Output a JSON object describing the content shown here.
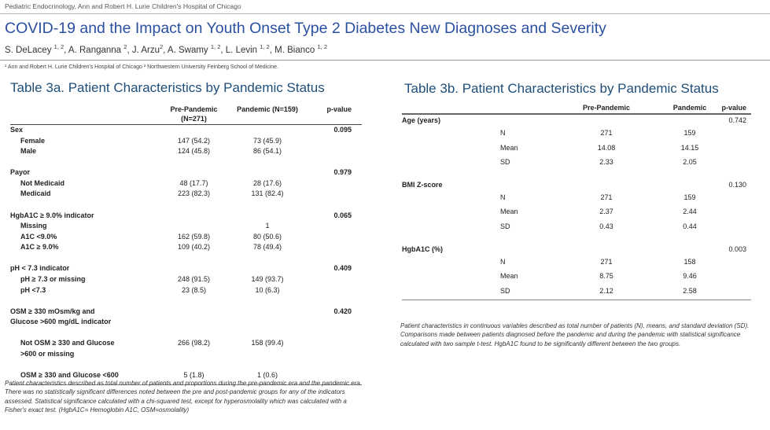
{
  "header": {
    "affiliation": "Pediatric Endocrinology, Ann and Robert H. Lurie Children's Hospital of Chicago",
    "title": "COVID-19 and the Impact on Youth Onset Type 2 Diabetes New Diagnoses and Severity",
    "authors": [
      "S. DeLacey ",
      "1, 2",
      ", A. Ranganna ",
      "2",
      ", J. Arzu",
      "2",
      ", A. Swamy ",
      "1, 2",
      ", L. Levin ",
      "1, 2",
      ", M. Bianco ",
      "1, 2"
    ],
    "footnote": "¹ Ann and Robert H. Lurie Children's Hospital of Chicago ² Northwestern University Feinberg School of Medicine."
  },
  "table_3a": {
    "title": "Table 3a. Patient Characteristics by Pandemic Status",
    "columns": [
      "Pre-Pandemic (N=271)",
      "Pandemic (N=159)",
      "p-value"
    ],
    "groups": [
      {
        "label": "Sex",
        "p_value": "0.095",
        "rows": [
          {
            "label": "Female",
            "pre": "147 (54.2)",
            "pandemic": "73 (45.9)"
          },
          {
            "label": "Male",
            "pre": "124 (45.8)",
            "pandemic": "86 (54.1)"
          }
        ]
      },
      {
        "label": "Payor",
        "p_value": "0.979",
        "rows": [
          {
            "label": "Not Medicaid",
            "pre": "48 (17.7)",
            "pandemic": "28 (17.6)"
          },
          {
            "label": "Medicaid",
            "pre": "223 (82.3)",
            "pandemic": "131 (82.4)"
          }
        ]
      },
      {
        "label": "HgbA1C ≥ 9.0% indicator",
        "p_value": "0.065",
        "rows": [
          {
            "label": "Missing",
            "pre": null,
            "pandemic": "1"
          },
          {
            "label": "A1C <9.0%",
            "pre": "162 (59.8)",
            "pandemic": "80 (50.6)"
          },
          {
            "label": "A1C ≥ 9.0%",
            "pre": "109 (40.2)",
            "pandemic": "78 (49.4)"
          }
        ]
      },
      {
        "label": "pH < 7.3 indicator",
        "p_value": "0.409",
        "rows": [
          {
            "label": "pH ≥ 7.3 or missing",
            "pre": "248 (91.5)",
            "pandemic": "149 (93.7)"
          },
          {
            "label": "pH <7.3",
            "pre": "23 (8.5)",
            "pandemic": "10 (6.3)"
          }
        ]
      },
      {
        "label": "OSM ≥ 330 mOsm/kg and Glucose >600 mg/dL indicator",
        "p_value": "0.420",
        "rows": [
          {
            "label": "Not OSM ≥ 330 and Glucose >600 or missing",
            "pre": "266 (98.2)",
            "pandemic": "158 (99.4)"
          },
          {
            "label": "OSM ≥ 330 and Glucose <600",
            "pre": "5 (1.8)",
            "pandemic": "1 (0.6)"
          }
        ]
      }
    ],
    "note": "Patient characteristics described as total number of patients and proportions during the pre-pandemic era and the pandemic era. There was no statistically significant differences noted between the pre and post-pandemic groups for any of the indicators assessed. Statistical significance calculated with a chi-squared test, except for hyperosmolality which was calculated with a Fisher's exact test. (HgbA1C= Hemoglobin A1C, OSM=osmolality)"
  },
  "table_3b": {
    "title": "Table 3b. Patient Characteristics by Pandemic Status",
    "columns": [
      "Pre-Pandemic",
      "Pandemic",
      "p-value"
    ],
    "groups": [
      {
        "label": "Age (years)",
        "p_value": "0.742",
        "rows": [
          {
            "label": "N",
            "pre": "271",
            "pandemic": "159"
          },
          {
            "label": "Mean",
            "pre": "14.08",
            "pandemic": "14.15"
          },
          {
            "label": "SD",
            "pre": "2.33",
            "pandemic": "2.05"
          }
        ]
      },
      {
        "label": "BMI Z-score",
        "p_value": "0.130",
        "rows": [
          {
            "label": "N",
            "pre": "271",
            "pandemic": "159"
          },
          {
            "label": "Mean",
            "pre": "2.37",
            "pandemic": "2.44"
          },
          {
            "label": "SD",
            "pre": "0.43",
            "pandemic": "0.44"
          }
        ]
      },
      {
        "label": "HgbA1C (%)",
        "p_value": "0.003",
        "rows": [
          {
            "label": "N",
            "pre": "271",
            "pandemic": "158"
          },
          {
            "label": "Mean",
            "pre": "8.75",
            "pandemic": "9.46"
          },
          {
            "label": "SD",
            "pre": "2.12",
            "pandemic": "2.58"
          }
        ]
      }
    ],
    "note": "Patient characteristics in continuous variables described as total number of patients (N), means, and standard deviation (SD). Comparisons made between patients diagnosed before the pandemic and during the pandemic with statistical significance calculated with two sample t-test. HgbA1C found to be significantly different between the two groups."
  }
}
